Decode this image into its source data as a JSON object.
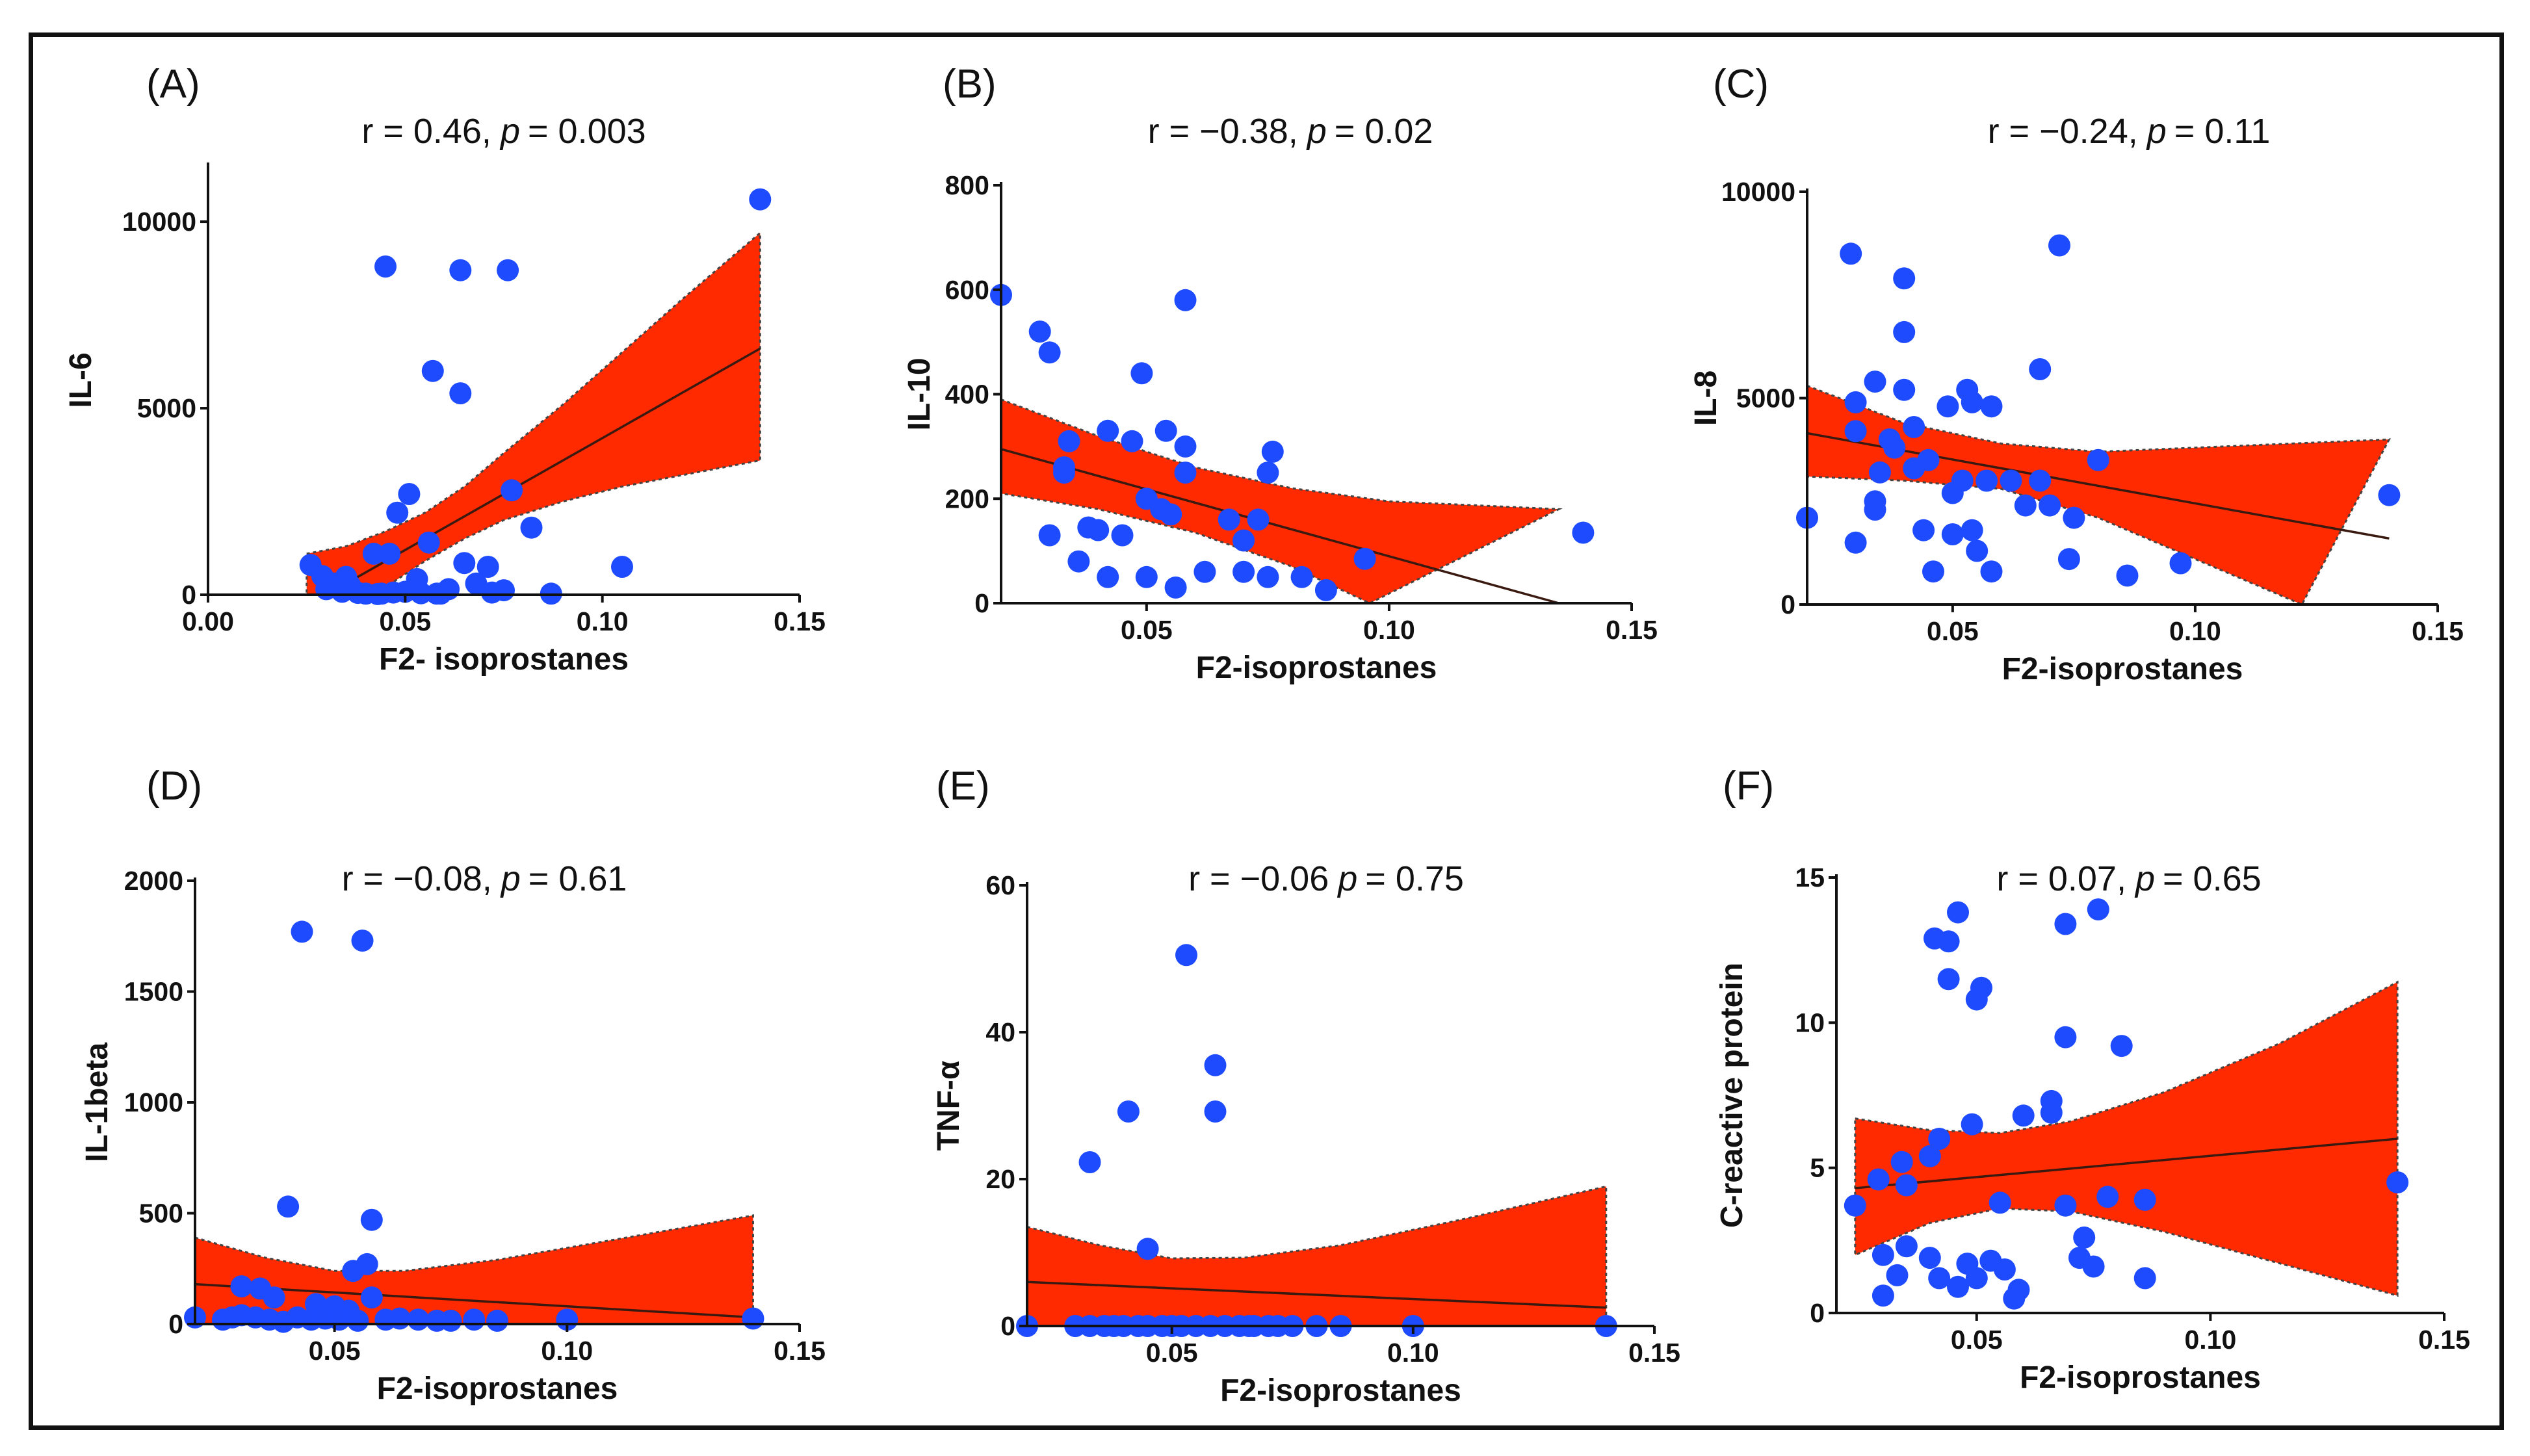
{
  "colors": {
    "band": "#ff2a00",
    "point": "#1f4bff",
    "axis": "#111111"
  },
  "chart_data": [
    {
      "type": "scatter",
      "panel_label": "(A)",
      "stat": {
        "r": "r = 0.46,",
        "p_symbol": "p",
        "p_value": "= 0.003"
      },
      "xlabel": "F2- isoprostanes",
      "ylabel": "IL-6",
      "xlim": [
        0,
        0.15
      ],
      "ylim": [
        0,
        11500
      ],
      "xticks": [
        0,
        0.05,
        0.1,
        0.15
      ],
      "xtick_labels": [
        "0.00",
        "0.05",
        "0.10",
        "0.15"
      ],
      "yticks": [
        0,
        5000,
        10000
      ],
      "ytick_labels": [
        "0",
        "5000",
        "10000"
      ],
      "fit": {
        "x": [
          0.025,
          0.14
        ],
        "y": [
          -300,
          6600
        ]
      },
      "ci_upper": {
        "x": [
          0.025,
          0.035,
          0.045,
          0.055,
          0.065,
          0.075,
          0.09,
          0.105,
          0.12,
          0.14
        ],
        "y": [
          1100,
          1300,
          1700,
          2200,
          2900,
          3800,
          5100,
          6500,
          7900,
          9700
        ]
      },
      "ci_lower": {
        "x": [
          0.025,
          0.035,
          0.045,
          0.055,
          0.065,
          0.075,
          0.09,
          0.105,
          0.12,
          0.14
        ],
        "y": [
          -1100,
          -500,
          200,
          900,
          1500,
          2000,
          2500,
          2900,
          3200,
          3600
        ]
      },
      "points": [
        [
          0.14,
          10600
        ],
        [
          0.045,
          8800
        ],
        [
          0.064,
          8700
        ],
        [
          0.076,
          8700
        ],
        [
          0.057,
          6000
        ],
        [
          0.064,
          5400
        ],
        [
          0.077,
          2800
        ],
        [
          0.051,
          2700
        ],
        [
          0.048,
          2200
        ],
        [
          0.082,
          1800
        ],
        [
          0.056,
          1400
        ],
        [
          0.042,
          1100
        ],
        [
          0.046,
          1100
        ],
        [
          0.026,
          800
        ],
        [
          0.065,
          850
        ],
        [
          0.071,
          750
        ],
        [
          0.105,
          750
        ],
        [
          0.029,
          500
        ],
        [
          0.035,
          480
        ],
        [
          0.053,
          420
        ],
        [
          0.032,
          300
        ],
        [
          0.036,
          250
        ],
        [
          0.03,
          150
        ],
        [
          0.034,
          80
        ],
        [
          0.038,
          50
        ],
        [
          0.04,
          30
        ],
        [
          0.043,
          20
        ],
        [
          0.047,
          60
        ],
        [
          0.05,
          80
        ],
        [
          0.054,
          40
        ],
        [
          0.058,
          30
        ],
        [
          0.061,
          150
        ],
        [
          0.068,
          300
        ],
        [
          0.072,
          60
        ],
        [
          0.075,
          120
        ],
        [
          0.087,
          30
        ],
        [
          0.044,
          30
        ],
        [
          0.059,
          30
        ]
      ]
    },
    {
      "type": "scatter",
      "panel_label": "(B)",
      "stat": {
        "r": "r = −0.38,",
        "p_symbol": "p",
        "p_value": "= 0.02"
      },
      "xlabel": "F2-isoprostanes",
      "ylabel": "IL-10",
      "xlim": [
        0.02,
        0.15
      ],
      "ylim": [
        0,
        800
      ],
      "xticks": [
        0.05,
        0.1,
        0.15
      ],
      "xtick_labels": [
        "0.05",
        "0.10",
        "0.15"
      ],
      "yticks": [
        0,
        200,
        400,
        600,
        800
      ],
      "ytick_labels": [
        "0",
        "200",
        "400",
        "600",
        "800"
      ],
      "fit": {
        "x": [
          0.02,
          0.135
        ],
        "y": [
          295,
          0
        ]
      },
      "ci_upper": {
        "x": [
          0.02,
          0.04,
          0.06,
          0.08,
          0.1,
          0.135
        ],
        "y": [
          390,
          320,
          260,
          220,
          195,
          180
        ]
      },
      "ci_lower": {
        "x": [
          0.02,
          0.04,
          0.06,
          0.08,
          0.096
        ],
        "y": [
          210,
          180,
          135,
          70,
          0
        ]
      },
      "points": [
        [
          0.02,
          590
        ],
        [
          0.058,
          580
        ],
        [
          0.028,
          520
        ],
        [
          0.03,
          480
        ],
        [
          0.049,
          440
        ],
        [
          0.034,
          310
        ],
        [
          0.042,
          330
        ],
        [
          0.047,
          310
        ],
        [
          0.054,
          330
        ],
        [
          0.058,
          300
        ],
        [
          0.076,
          290
        ],
        [
          0.033,
          260
        ],
        [
          0.033,
          250
        ],
        [
          0.058,
          250
        ],
        [
          0.075,
          250
        ],
        [
          0.05,
          200
        ],
        [
          0.053,
          180
        ],
        [
          0.055,
          170
        ],
        [
          0.067,
          160
        ],
        [
          0.073,
          160
        ],
        [
          0.04,
          140
        ],
        [
          0.045,
          130
        ],
        [
          0.03,
          130
        ],
        [
          0.038,
          145
        ],
        [
          0.07,
          120
        ],
        [
          0.036,
          80
        ],
        [
          0.042,
          50
        ],
        [
          0.05,
          50
        ],
        [
          0.056,
          30
        ],
        [
          0.062,
          60
        ],
        [
          0.07,
          60
        ],
        [
          0.075,
          50
        ],
        [
          0.082,
          50
        ],
        [
          0.095,
          85
        ],
        [
          0.14,
          135
        ],
        [
          0.087,
          25
        ]
      ]
    },
    {
      "type": "scatter",
      "panel_label": "(C)",
      "stat": {
        "r": "r = −0.24,",
        "p_symbol": "p",
        "p_value": "= 0.11"
      },
      "xlabel": "F2-isoprostanes",
      "ylabel": "IL-8",
      "xlim": [
        0.02,
        0.15
      ],
      "ylim": [
        0,
        10000
      ],
      "xticks": [
        0.05,
        0.1,
        0.15
      ],
      "xtick_labels": [
        "0.05",
        "0.10",
        "0.15"
      ],
      "yticks": [
        0,
        5000,
        10000
      ],
      "ytick_labels": [
        "0",
        "5000",
        "10000"
      ],
      "fit": {
        "x": [
          0.02,
          0.14
        ],
        "y": [
          4150,
          1600
        ]
      },
      "ci_upper": {
        "x": [
          0.02,
          0.04,
          0.06,
          0.08,
          0.1,
          0.14
        ],
        "y": [
          5300,
          4400,
          3900,
          3700,
          3800,
          4000
        ]
      },
      "ci_lower": {
        "x": [
          0.02,
          0.04,
          0.06,
          0.08,
          0.1,
          0.122
        ],
        "y": [
          3100,
          3000,
          2800,
          2100,
          1100,
          0
        ]
      },
      "points": [
        [
          0.029,
          8500
        ],
        [
          0.072,
          8700
        ],
        [
          0.04,
          7900
        ],
        [
          0.04,
          6600
        ],
        [
          0.068,
          5700
        ],
        [
          0.034,
          5400
        ],
        [
          0.04,
          5200
        ],
        [
          0.053,
          5200
        ],
        [
          0.03,
          4900
        ],
        [
          0.049,
          4800
        ],
        [
          0.054,
          4900
        ],
        [
          0.058,
          4800
        ],
        [
          0.03,
          4200
        ],
        [
          0.037,
          4000
        ],
        [
          0.042,
          4300
        ],
        [
          0.038,
          3800
        ],
        [
          0.045,
          3500
        ],
        [
          0.08,
          3500
        ],
        [
          0.035,
          3200
        ],
        [
          0.042,
          3300
        ],
        [
          0.052,
          3000
        ],
        [
          0.057,
          3000
        ],
        [
          0.062,
          3000
        ],
        [
          0.068,
          3000
        ],
        [
          0.05,
          2700
        ],
        [
          0.034,
          2500
        ],
        [
          0.034,
          2300
        ],
        [
          0.065,
          2400
        ],
        [
          0.07,
          2400
        ],
        [
          0.075,
          2100
        ],
        [
          0.14,
          2650
        ],
        [
          0.02,
          2100
        ],
        [
          0.044,
          1800
        ],
        [
          0.05,
          1700
        ],
        [
          0.054,
          1800
        ],
        [
          0.03,
          1500
        ],
        [
          0.055,
          1300
        ],
        [
          0.074,
          1100
        ],
        [
          0.097,
          1000
        ],
        [
          0.046,
          800
        ],
        [
          0.058,
          800
        ],
        [
          0.086,
          700
        ]
      ]
    },
    {
      "type": "scatter",
      "panel_label": "(D)",
      "stat": {
        "r": "r = −0.08,",
        "p_symbol": "p",
        "p_value": "= 0.61"
      },
      "xlabel": "F2-isoprostanes",
      "ylabel": "IL-1beta",
      "xlim": [
        0.02,
        0.15
      ],
      "ylim": [
        0,
        2000
      ],
      "xticks": [
        0.05,
        0.1,
        0.15
      ],
      "xtick_labels": [
        "0.05",
        "0.10",
        "0.15"
      ],
      "yticks": [
        0,
        500,
        1000,
        1500,
        2000
      ],
      "ytick_labels": [
        "0",
        "500",
        "1000",
        "1500",
        "2000"
      ],
      "fit": {
        "x": [
          0.02,
          0.14
        ],
        "y": [
          180,
          30
        ]
      },
      "ci_upper": {
        "x": [
          0.02,
          0.035,
          0.05,
          0.065,
          0.085,
          0.11,
          0.14
        ],
        "y": [
          390,
          300,
          240,
          240,
          290,
          380,
          490
        ]
      },
      "ci_lower": {
        "x": [
          0.02,
          0.14
        ],
        "y": [
          0,
          0
        ]
      },
      "points": [
        [
          0.043,
          1770
        ],
        [
          0.056,
          1730
        ],
        [
          0.04,
          530
        ],
        [
          0.058,
          470
        ],
        [
          0.057,
          270
        ],
        [
          0.054,
          240
        ],
        [
          0.03,
          170
        ],
        [
          0.034,
          160
        ],
        [
          0.037,
          120
        ],
        [
          0.046,
          90
        ],
        [
          0.05,
          80
        ],
        [
          0.053,
          60
        ],
        [
          0.03,
          40
        ],
        [
          0.033,
          30
        ],
        [
          0.036,
          20
        ],
        [
          0.039,
          10
        ],
        [
          0.042,
          30
        ],
        [
          0.045,
          20
        ],
        [
          0.048,
          25
        ],
        [
          0.051,
          20
        ],
        [
          0.055,
          15
        ],
        [
          0.058,
          120
        ],
        [
          0.061,
          20
        ],
        [
          0.064,
          25
        ],
        [
          0.068,
          20
        ],
        [
          0.072,
          15
        ],
        [
          0.075,
          15
        ],
        [
          0.08,
          20
        ],
        [
          0.085,
          15
        ],
        [
          0.1,
          20
        ],
        [
          0.14,
          25
        ],
        [
          0.02,
          30
        ],
        [
          0.026,
          20
        ],
        [
          0.028,
          30
        ]
      ]
    },
    {
      "type": "scatter",
      "panel_label": "(E)",
      "stat": {
        "r": "r = −0.06",
        "p_symbol": "p",
        "p_value": "= 0.75"
      },
      "xlabel": "F2-isoprostanes",
      "ylabel": "TNF-α",
      "xlim": [
        0.02,
        0.15
      ],
      "ylim": [
        0,
        60
      ],
      "xticks": [
        0.05,
        0.1,
        0.15
      ],
      "xtick_labels": [
        "0.05",
        "0.10",
        "0.15"
      ],
      "yticks": [
        0,
        20,
        40,
        60
      ],
      "ytick_labels": [
        "0",
        "20",
        "40",
        "60"
      ],
      "fit": {
        "x": [
          0.02,
          0.14
        ],
        "y": [
          6,
          2.5
        ]
      },
      "ci_upper": {
        "x": [
          0.02,
          0.035,
          0.05,
          0.065,
          0.085,
          0.11,
          0.14
        ],
        "y": [
          13.5,
          11,
          9.2,
          9.3,
          11,
          14.5,
          19
        ]
      },
      "ci_lower": {
        "x": [
          0.02,
          0.14
        ],
        "y": [
          0,
          0
        ]
      },
      "points": [
        [
          0.053,
          50.5
        ],
        [
          0.059,
          35.5
        ],
        [
          0.059,
          29.2
        ],
        [
          0.041,
          29.2
        ],
        [
          0.033,
          22.3
        ],
        [
          0.045,
          10.5
        ],
        [
          0.02,
          0
        ],
        [
          0.03,
          0
        ],
        [
          0.033,
          0
        ],
        [
          0.036,
          0
        ],
        [
          0.038,
          0
        ],
        [
          0.04,
          0
        ],
        [
          0.043,
          0
        ],
        [
          0.045,
          0
        ],
        [
          0.048,
          0
        ],
        [
          0.05,
          0
        ],
        [
          0.052,
          0
        ],
        [
          0.055,
          0
        ],
        [
          0.058,
          0
        ],
        [
          0.061,
          0
        ],
        [
          0.064,
          0
        ],
        [
          0.067,
          0
        ],
        [
          0.07,
          0
        ],
        [
          0.072,
          0
        ],
        [
          0.075,
          0
        ],
        [
          0.08,
          0
        ],
        [
          0.085,
          0
        ],
        [
          0.1,
          0
        ],
        [
          0.14,
          0
        ],
        [
          0.066,
          0
        ]
      ]
    },
    {
      "type": "scatter",
      "panel_label": "(F)",
      "stat": {
        "r": "r = 0.07,",
        "p_symbol": "p",
        "p_value": "= 0.65"
      },
      "xlabel": "F2-isoprostanes",
      "ylabel": "C-reactive protein",
      "xlim": [
        0.02,
        0.15
      ],
      "ylim": [
        0,
        15
      ],
      "xticks": [
        0.05,
        0.1,
        0.15
      ],
      "xtick_labels": [
        "0.05",
        "0.10",
        "0.15"
      ],
      "yticks": [
        0,
        5,
        10,
        15
      ],
      "ytick_labels": [
        "0",
        "5",
        "10",
        "15"
      ],
      "fit": {
        "x": [
          0.024,
          0.14
        ],
        "y": [
          4.3,
          6.0
        ]
      },
      "ci_upper": {
        "x": [
          0.024,
          0.04,
          0.055,
          0.07,
          0.09,
          0.115,
          0.14
        ],
        "y": [
          6.7,
          6.3,
          6.2,
          6.6,
          7.6,
          9.3,
          11.4
        ]
      },
      "ci_lower": {
        "x": [
          0.024,
          0.04,
          0.055,
          0.07,
          0.09,
          0.115,
          0.14
        ],
        "y": [
          2.0,
          3.1,
          3.6,
          3.5,
          2.8,
          1.7,
          0.6
        ]
      },
      "points": [
        [
          0.046,
          13.8
        ],
        [
          0.076,
          13.9
        ],
        [
          0.069,
          13.4
        ],
        [
          0.041,
          12.9
        ],
        [
          0.044,
          12.8
        ],
        [
          0.044,
          11.5
        ],
        [
          0.051,
          11.2
        ],
        [
          0.05,
          10.8
        ],
        [
          0.069,
          9.5
        ],
        [
          0.081,
          9.2
        ],
        [
          0.066,
          7.3
        ],
        [
          0.066,
          6.9
        ],
        [
          0.06,
          6.8
        ],
        [
          0.049,
          6.5
        ],
        [
          0.042,
          6.0
        ],
        [
          0.04,
          5.4
        ],
        [
          0.034,
          5.2
        ],
        [
          0.029,
          4.6
        ],
        [
          0.024,
          3.7
        ],
        [
          0.035,
          4.4
        ],
        [
          0.14,
          4.5
        ],
        [
          0.055,
          3.8
        ],
        [
          0.069,
          3.7
        ],
        [
          0.078,
          4.0
        ],
        [
          0.086,
          3.9
        ],
        [
          0.073,
          2.6
        ],
        [
          0.03,
          2.0
        ],
        [
          0.035,
          2.3
        ],
        [
          0.04,
          1.9
        ],
        [
          0.048,
          1.7
        ],
        [
          0.053,
          1.8
        ],
        [
          0.056,
          1.5
        ],
        [
          0.072,
          1.9
        ],
        [
          0.075,
          1.6
        ],
        [
          0.042,
          1.2
        ],
        [
          0.033,
          1.3
        ],
        [
          0.05,
          1.2
        ],
        [
          0.086,
          1.2
        ],
        [
          0.046,
          0.9
        ],
        [
          0.059,
          0.8
        ],
        [
          0.03,
          0.6
        ],
        [
          0.058,
          0.5
        ]
      ]
    }
  ]
}
